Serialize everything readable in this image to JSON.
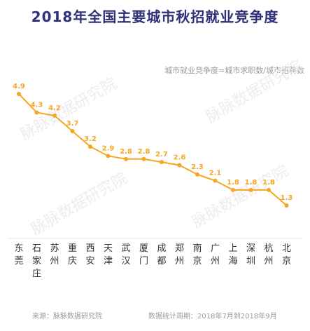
{
  "page": {
    "title": "2018年全国主要城市秋招就业竞争度",
    "subtitle": "城市就业竞争度=城市求职数/城市招聘数",
    "watermark": "脉脉数据研究院",
    "source": "来源：脉脉数据研究院",
    "period": "数据统计周期：2018年7月到2018年9月"
  },
  "colors": {
    "line": "#f5a623",
    "title": "#2f2f7a",
    "axis": "#e0e0e0",
    "label": "#333333",
    "value": "#f5a623"
  },
  "chart_data": {
    "type": "line",
    "title": "2018年全国主要城市秋招就业竞争度",
    "subtitle": "城市就业竞争度=城市求职数/城市招聘数",
    "categories": [
      "东莞",
      "石家庄",
      "苏州",
      "重庆",
      "西安",
      "天津",
      "武汉",
      "厦门",
      "成都",
      "郑州",
      "南京",
      "广州",
      "上海",
      "深圳",
      "杭州",
      "北京"
    ],
    "values": [
      4.9,
      4.3,
      4.2,
      3.7,
      3.2,
      2.9,
      2.8,
      2.8,
      2.7,
      2.6,
      2.3,
      2.1,
      1.8,
      1.8,
      1.8,
      1.3
    ],
    "value_labels": [
      "4.9",
      "4.3",
      "4.2",
      "3.7",
      "3.2",
      "2.9",
      "2.8",
      "2.8",
      "2.7",
      "2.6",
      "2.3",
      "2.1",
      "1.8",
      "1.8",
      "1.8",
      "1.3"
    ],
    "ylim": [
      0,
      6
    ],
    "xlabel": "",
    "ylabel": "",
    "grid": false,
    "legend": "none"
  }
}
